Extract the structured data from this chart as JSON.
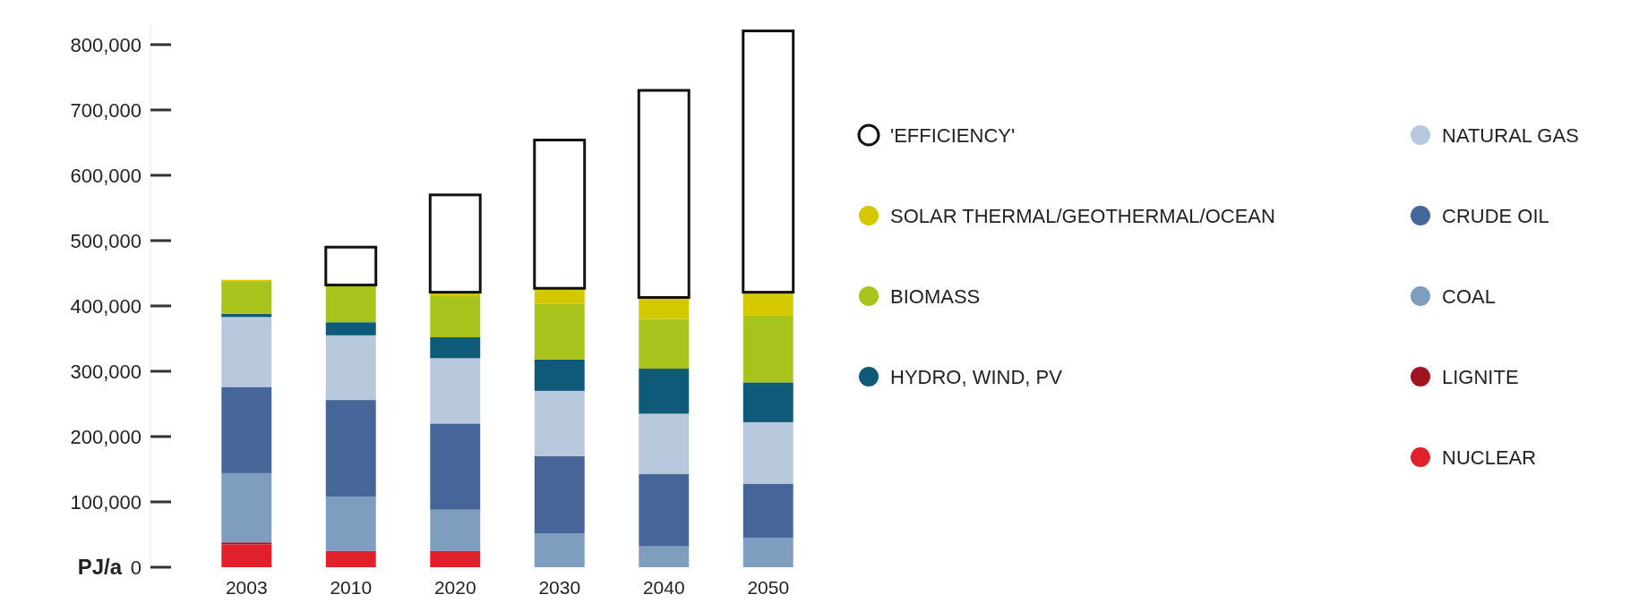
{
  "chart_data": {
    "type": "bar",
    "stacked": true,
    "ylabel": "PJ/a",
    "categories": [
      "2003",
      "2010",
      "2020",
      "2030",
      "2040",
      "2050"
    ],
    "ylim": [
      0,
      830000
    ],
    "yticks": [
      0,
      {
        "value": 100000,
        "label": "100,000"
      },
      {
        "value": 200000,
        "label": "200,000"
      },
      {
        "value": 300000,
        "label": "300,000"
      },
      {
        "value": 400000,
        "label": "400,000"
      },
      {
        "value": 500000,
        "label": "500,000"
      },
      {
        "value": 600000,
        "label": "600,000"
      },
      {
        "value": 700000,
        "label": "700,000"
      },
      {
        "value": 800000,
        "label": "800,000"
      }
    ],
    "legend": "right",
    "series": [
      {
        "name": "NUCLEAR",
        "color": "#e0202a",
        "values": [
          35000,
          25000,
          25000,
          0,
          0,
          0
        ]
      },
      {
        "name": "LIGNITE",
        "color": "#a01420",
        "values": [
          3000,
          0,
          0,
          0,
          0,
          0
        ]
      },
      {
        "name": "COAL",
        "color": "#7e9dbf",
        "values": [
          106000,
          83000,
          63000,
          52000,
          32000,
          45000
        ]
      },
      {
        "name": "CRUDE OIL",
        "color": "#46669a",
        "values": [
          132000,
          148000,
          132000,
          118000,
          111000,
          83000
        ]
      },
      {
        "name": "NATURAL GAS",
        "color": "#b8c8dc",
        "values": [
          107000,
          99000,
          100000,
          100000,
          92000,
          94000
        ]
      },
      {
        "name": "HYDRO, WIND, PV",
        "color": "#0e5a78",
        "values": [
          5000,
          20000,
          32000,
          48000,
          69000,
          61000
        ]
      },
      {
        "name": "BIOMASS",
        "color": "#a8c41c",
        "values": [
          49000,
          57000,
          63000,
          85000,
          76000,
          102000
        ]
      },
      {
        "name": "SOLAR THERMAL/GEOTHERMAL/OCEAN",
        "color": "#d4c800",
        "values": [
          3000,
          null,
          6000,
          24000,
          33000,
          36000
        ]
      },
      {
        "name": "'EFFICIENCY'",
        "color": "#ffffff",
        "values": [
          0,
          58000,
          149000,
          227000,
          317000,
          400000
        ]
      }
    ]
  }
}
